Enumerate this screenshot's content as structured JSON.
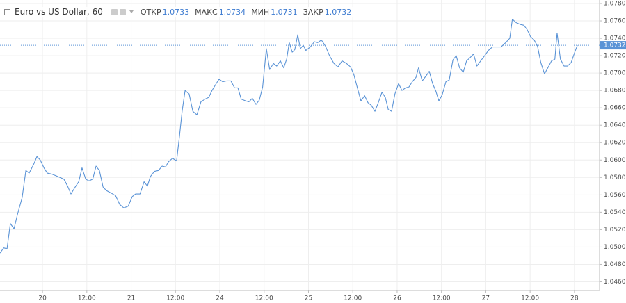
{
  "header": {
    "title": "Euro vs US Dollar, 60",
    "stats": [
      {
        "label": "ОТКР",
        "value": 1.0733
      },
      {
        "label": "МАКС",
        "value": 1.0734
      },
      {
        "label": "МИН",
        "value": 1.0731
      },
      {
        "label": "ЗАКР",
        "value": 1.0732
      }
    ]
  },
  "chart_data": {
    "type": "line",
    "color": "#5a93d6",
    "grid": true,
    "last_price": 1.0732,
    "x": [
      -11.5,
      -10.5,
      -9.6,
      -8.7,
      -7.7,
      -6.8,
      -5.5,
      -4.5,
      -3.6,
      -2.4,
      -1.5,
      -0.6,
      0.4,
      1.3,
      2.4,
      3.6,
      4.7,
      5.8,
      6.8,
      7.7,
      8.7,
      9.8,
      10.7,
      11.7,
      12.6,
      13.6,
      14.5,
      15.4,
      16.4,
      17.3,
      18.6,
      19.8,
      20.9,
      22.0,
      23.2,
      24.3,
      25.2,
      26.4,
      27.5,
      28.4,
      29.2,
      30.3,
      31.4,
      32.4,
      33.3,
      34.1,
      35.2,
      36.3,
      37.1,
      37.8,
      38.6,
      39.7,
      40.7,
      41.8,
      42.9,
      44.0,
      45.0,
      45.9,
      46.9,
      47.8,
      48.8,
      49.9,
      51.0,
      52.0,
      52.9,
      53.8,
      55.0,
      55.9,
      56.8,
      57.8,
      58.7,
      59.6,
      60.6,
      61.5,
      62.5,
      63.4,
      64.4,
      65.3,
      66.1,
      66.8,
      67.6,
      68.3,
      69.1,
      69.8,
      70.6,
      71.3,
      72.5,
      73.6,
      74.5,
      75.5,
      76.6,
      77.7,
      78.9,
      80.0,
      81.1,
      82.3,
      83.4,
      84.3,
      85.3,
      86.2,
      87.2,
      88.1,
      89.0,
      90.0,
      90.9,
      91.9,
      92.8,
      93.6,
      94.5,
      95.4,
      96.4,
      97.3,
      98.3,
      99.2,
      100.1,
      101.1,
      101.8,
      102.8,
      103.7,
      104.7,
      105.6,
      106.5,
      107.3,
      108.2,
      109.2,
      110.1,
      111.1,
      112.0,
      112.9,
      113.9,
      114.8,
      115.8,
      116.7,
      117.6,
      118.8,
      119.7,
      120.7,
      121.8,
      122.9,
      124.1,
      125.4,
      126.5,
      127.2,
      128.2,
      129.3,
      130.3,
      131.2,
      132.1,
      133.1,
      134.0,
      134.9,
      135.9,
      136.8,
      137.8,
      138.7,
      139.3,
      140.2,
      141.2,
      142.1,
      143.1,
      144.0,
      144.8
    ],
    "values": [
      1.0493,
      1.0499,
      1.0498,
      1.0527,
      1.0521,
      1.0537,
      1.0557,
      1.0588,
      1.0585,
      1.0595,
      1.0604,
      1.06,
      1.0591,
      1.0585,
      1.0584,
      1.0582,
      1.058,
      1.0578,
      1.057,
      1.0561,
      1.0568,
      1.0575,
      1.0591,
      1.0578,
      1.0576,
      1.0578,
      1.0593,
      1.0588,
      1.0569,
      1.0565,
      1.0562,
      1.0559,
      1.0549,
      1.0545,
      1.0547,
      1.0558,
      1.0561,
      1.0561,
      1.0575,
      1.057,
      1.0581,
      1.0587,
      1.0588,
      1.0593,
      1.0592,
      1.0598,
      1.0602,
      1.0599,
      1.0628,
      1.0656,
      1.068,
      1.0676,
      1.0656,
      1.0652,
      1.0667,
      1.067,
      1.0672,
      1.068,
      1.0687,
      1.0693,
      1.069,
      1.0691,
      1.0691,
      1.0683,
      1.0683,
      1.067,
      1.0668,
      1.0667,
      1.0671,
      1.0664,
      1.0669,
      1.0684,
      1.0728,
      1.0704,
      1.0711,
      1.0708,
      1.0714,
      1.0706,
      1.0716,
      1.0735,
      1.0724,
      1.0727,
      1.0744,
      1.0728,
      1.0732,
      1.0726,
      1.073,
      1.0736,
      1.0735,
      1.0738,
      1.0731,
      1.072,
      1.0711,
      1.0707,
      1.0714,
      1.0711,
      1.0707,
      1.0698,
      1.0682,
      1.0668,
      1.0674,
      1.0666,
      1.0663,
      1.0656,
      1.0666,
      1.0678,
      1.0672,
      1.0658,
      1.0656,
      1.0676,
      1.0688,
      1.068,
      1.0683,
      1.0684,
      1.069,
      1.0695,
      1.0706,
      1.0691,
      1.0696,
      1.0702,
      1.0688,
      1.0679,
      1.0668,
      1.0675,
      1.069,
      1.0692,
      1.0715,
      1.072,
      1.0706,
      1.0701,
      1.0714,
      1.0718,
      1.0722,
      1.0708,
      1.0715,
      1.072,
      1.0726,
      1.073,
      1.073,
      1.073,
      1.0735,
      1.074,
      1.0762,
      1.0758,
      1.0756,
      1.0755,
      1.075,
      1.0742,
      1.0738,
      1.0731,
      1.0712,
      1.0699,
      1.0706,
      1.0714,
      1.0716,
      1.0746,
      1.0716,
      1.0708,
      1.0708,
      1.0712,
      1.0723,
      1.0732
    ],
    "xlim": [
      -11.5,
      150.8
    ],
    "xticks": [
      {
        "value": 0,
        "label": "20"
      },
      {
        "value": 12,
        "label": "12:00"
      },
      {
        "value": 24,
        "label": "21"
      },
      {
        "value": 36,
        "label": "12:00"
      },
      {
        "value": 48,
        "label": "24"
      },
      {
        "value": 60,
        "label": "12:00"
      },
      {
        "value": 72,
        "label": "25"
      },
      {
        "value": 84,
        "label": "12:00"
      },
      {
        "value": 96,
        "label": "26"
      },
      {
        "value": 108,
        "label": "12:00"
      },
      {
        "value": 120,
        "label": "27"
      },
      {
        "value": 132,
        "label": "12:00"
      },
      {
        "value": 144,
        "label": "28"
      }
    ],
    "ylim": [
      1.045,
      1.078
    ],
    "yticks": [
      {
        "value": 1.046,
        "label": "1.0460"
      },
      {
        "value": 1.048,
        "label": "1.0480"
      },
      {
        "value": 1.05,
        "label": "1.0500"
      },
      {
        "value": 1.052,
        "label": "1.0520"
      },
      {
        "value": 1.054,
        "label": "1.0540"
      },
      {
        "value": 1.056,
        "label": "1.0560"
      },
      {
        "value": 1.058,
        "label": "1.0580"
      },
      {
        "value": 1.06,
        "label": "1.0600"
      },
      {
        "value": 1.062,
        "label": "1.0620"
      },
      {
        "value": 1.064,
        "label": "1.0640"
      },
      {
        "value": 1.066,
        "label": "1.0660"
      },
      {
        "value": 1.068,
        "label": "1.0680"
      },
      {
        "value": 1.07,
        "label": "1.0700"
      },
      {
        "value": 1.072,
        "label": "1.0720"
      },
      {
        "value": 1.074,
        "label": "1.0740"
      },
      {
        "value": 1.076,
        "label": "1.0760"
      },
      {
        "value": 1.078,
        "label": "1.0780"
      }
    ]
  }
}
